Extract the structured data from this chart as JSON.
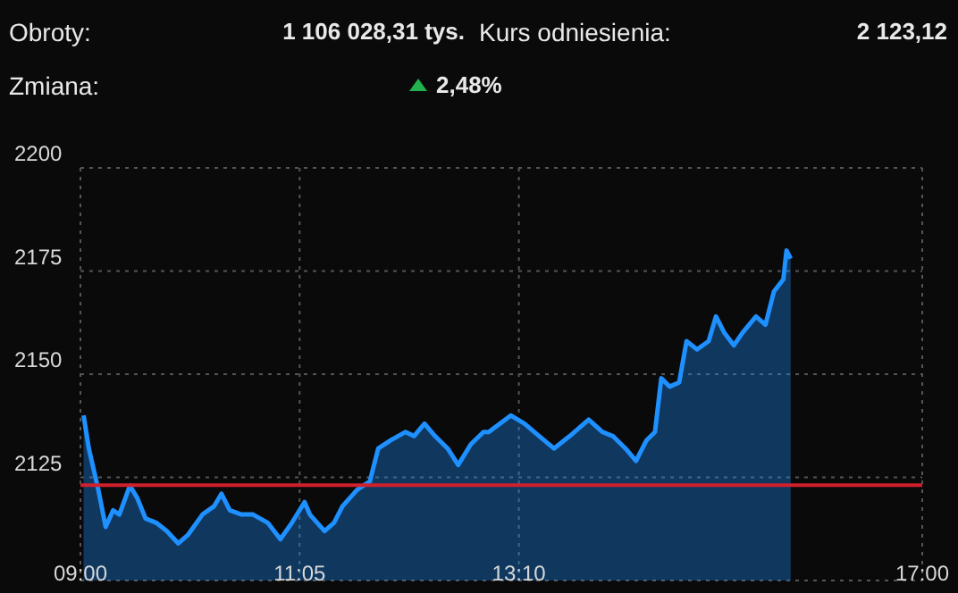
{
  "chart_data": {
    "type": "area",
    "annotations": [
      "Obroty:",
      "1 106 028,31 tys.",
      "Kurs odniesienia:",
      "2 123,12",
      "Zmiana:",
      "2,48%"
    ],
    "x": [
      9.03,
      9.08,
      9.17,
      9.24,
      9.31,
      9.37,
      9.47,
      9.54,
      9.62,
      9.72,
      9.82,
      9.93,
      10.02,
      10.16,
      10.27,
      10.34,
      10.42,
      10.53,
      10.64,
      10.78,
      10.9,
      11.01,
      11.13,
      11.18,
      11.32,
      11.41,
      11.49,
      11.63,
      11.75,
      11.83,
      11.95,
      12.09,
      12.17,
      12.27,
      12.37,
      12.49,
      12.59,
      12.71,
      12.83,
      12.88,
      13.09,
      13.22,
      13.36,
      13.5,
      13.65,
      13.83,
      13.96,
      14.06,
      14.18,
      14.28,
      14.38,
      14.46,
      14.52,
      14.6,
      14.69,
      14.76,
      14.86,
      14.97,
      15.04,
      15.12,
      15.21,
      15.29,
      15.42,
      15.51,
      15.59,
      15.68,
      15.71,
      15.75
    ],
    "series": [
      {
        "color": "#1e90ff",
        "values": [
          2140,
          2132,
          2122,
          2113,
          2117,
          2116,
          2123,
          2120,
          2115,
          2114,
          2112,
          2109,
          2111,
          2116,
          2118,
          2121,
          2117,
          2116,
          2116,
          2114,
          2110,
          2114,
          2119,
          2116,
          2112,
          2114,
          2118,
          2122,
          2124,
          2132,
          2134,
          2136,
          2135,
          2138,
          2135,
          2132,
          2128,
          2133,
          2136,
          2136,
          2140,
          2138,
          2135,
          2132,
          2135,
          2139,
          2136,
          2135,
          2132,
          2129,
          2134,
          2136,
          2149,
          2147,
          2148,
          2158,
          2156,
          2158,
          2164,
          2160,
          2157,
          2160,
          2164,
          2162,
          2170,
          2173,
          2180,
          2178
        ]
      }
    ],
    "xlim": [
      9,
      17
    ],
    "xticks": [
      {
        "value": 9,
        "label": "09:00"
      },
      {
        "value": 11.0833,
        "label": "11:05"
      },
      {
        "value": 13.1667,
        "label": "13:10"
      },
      {
        "value": 17,
        "label": "17:00"
      }
    ],
    "ylim": [
      2100,
      2200
    ],
    "yticks": [
      2125,
      2150,
      2175,
      2200
    ],
    "ref_lines": [
      {
        "axis": "y",
        "value": 2123.12,
        "color": "#d0202e"
      }
    ],
    "grid": true
  }
}
